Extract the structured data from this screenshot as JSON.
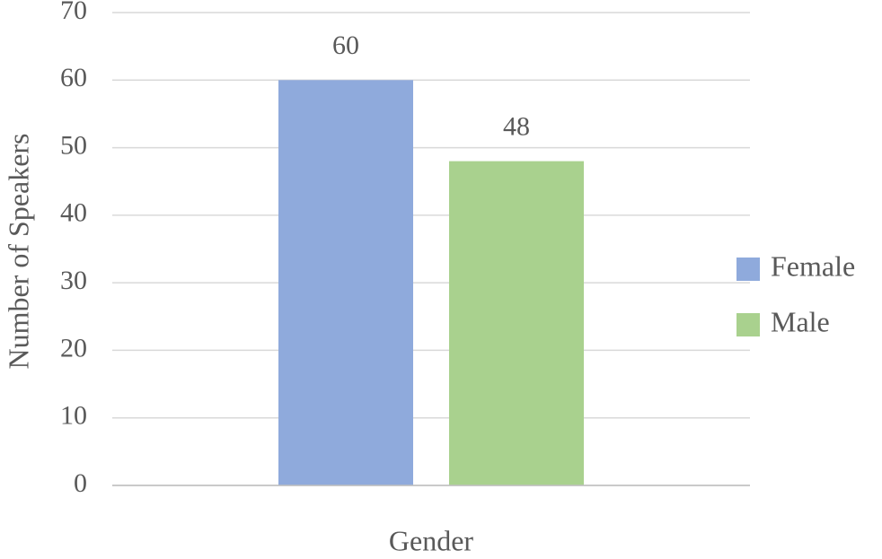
{
  "chart_data": {
    "type": "bar",
    "x_label": "Gender",
    "y_label": "Number of Speakers",
    "categories": [
      null
    ],
    "series": [
      {
        "name": "Female",
        "color": "#8faadc",
        "values": [
          60
        ]
      },
      {
        "name": "Male",
        "color": "#a9d18e",
        "values": [
          48
        ]
      }
    ],
    "ylim": [
      0,
      70
    ],
    "yticks": [
      0,
      10,
      20,
      30,
      40,
      50,
      60,
      70
    ],
    "grid": true,
    "legend": "right"
  }
}
